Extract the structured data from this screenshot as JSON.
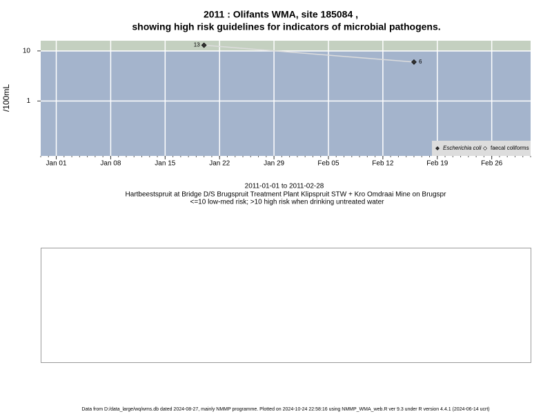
{
  "chart_data": {
    "type": "line",
    "title": "2011 : Olifants WMA, site 185084 ,",
    "title_line2": "showing high risk guidelines for indicators of microbial pathogens.",
    "y_label": "/100mL",
    "x": [
      "2011-01-20",
      "2011-02-16"
    ],
    "series": [
      {
        "name": "Escherichia coli",
        "color": "#333333",
        "line_color": "#dddddd",
        "values": [
          13,
          6
        ],
        "value_labels": [
          "13",
          "6"
        ]
      },
      {
        "name": "faecal coliforms",
        "color": "#ffffff",
        "line_color": "#dddddd",
        "values": [
          null,
          null
        ]
      }
    ],
    "xlim": [
      "2010-12-30",
      "2011-03-03"
    ],
    "xticks": [
      {
        "value": "2011-01-01",
        "label": "Jan 01"
      },
      {
        "value": "2011-01-08",
        "label": "Jan 08"
      },
      {
        "value": "2011-01-15",
        "label": "Jan 15"
      },
      {
        "value": "2011-01-22",
        "label": "Jan 22"
      },
      {
        "value": "2011-01-29",
        "label": "Jan 29"
      },
      {
        "value": "2011-02-05",
        "label": "Feb 05"
      },
      {
        "value": "2011-02-12",
        "label": "Feb 12"
      },
      {
        "value": "2011-02-19",
        "label": "Feb 19"
      },
      {
        "value": "2011-02-26",
        "label": "Feb 26"
      }
    ],
    "ylim": [
      0.08,
      16
    ],
    "yticks": [
      1,
      10
    ],
    "log_y": true,
    "grid": true,
    "legend_position": "bottom-right",
    "high_risk_threshold": 10,
    "plot_color": "#a4b4cc",
    "high_risk_color": "#c4d0c0",
    "caption": [
      "2011-01-01 to 2011-02-28",
      "Hartbeestspruit at Bridge D/S Brugspruit Treatment Plant Klipspruit STW + Kro Omdraai Mine on Brugspr",
      "<=10 low-med risk; >10 high risk when drinking untreated water"
    ],
    "footer": "Data from D:/data_large/wq/wms.db dated 2024-08-27, mainly NMMP programme. Plotted on 2024-10-24 22:58:16 using NMMP_WMA_web.R ver 9.3 under R version 4.4.1 (2024-06-14 ucrt)"
  }
}
